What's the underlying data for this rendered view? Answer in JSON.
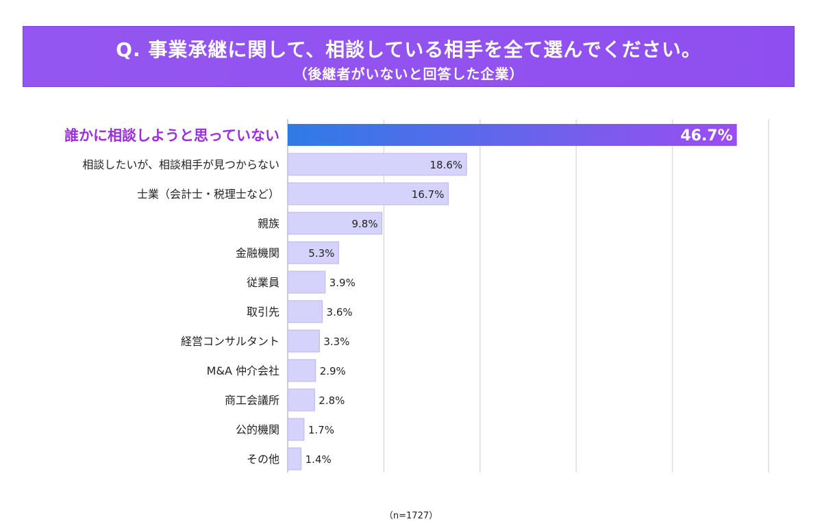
{
  "header": {
    "title": "Q. 事業承継に関して、相談している相手を全て選んでください。",
    "subtitle": "（後継者がいないと回答した企業）"
  },
  "note": "（n=1727）",
  "colors": {
    "header_bg": "#9456f0",
    "highlight_start": "#2f7be6",
    "highlight_end": "#9b4df2",
    "highlight_label": "#9b2de0",
    "bar": "#d5d2fb",
    "bar_border": "#b9b4f0",
    "grid": "#dcdcdc"
  },
  "chart_data": {
    "type": "bar",
    "orientation": "horizontal",
    "unit": "%",
    "categories": [
      "誰かに相談しようと思っていない",
      "相談したいが、相談相手が見つからない",
      "士業（会計士・税理士など）",
      "親族",
      "金融機関",
      "従業員",
      "取引先",
      "経営コンサルタント",
      "M&A 仲介会社",
      "商工会議所",
      "公的機関",
      "その他"
    ],
    "values": [
      46.7,
      18.6,
      16.7,
      9.8,
      5.3,
      3.9,
      3.6,
      3.3,
      2.9,
      2.8,
      1.7,
      1.4
    ],
    "value_labels": [
      "46.7%",
      "18.6%",
      "16.7%",
      "9.8%",
      "5.3%",
      "3.9%",
      "3.6%",
      "3.3%",
      "2.9%",
      "2.8%",
      "1.7%",
      "1.4%"
    ],
    "highlight_index": 0,
    "xlim": [
      0,
      50
    ],
    "grid": true
  }
}
